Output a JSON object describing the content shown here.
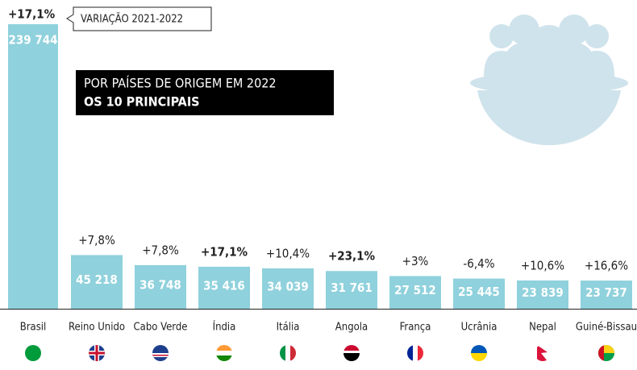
{
  "chart_data": {
    "type": "bar",
    "annotation": "VARIAÇÃO 2021-2022",
    "subtitle": "POR PAÍSES DE ORIGEM EM 2022",
    "title": "OS 10 PRINCIPAIS",
    "categories": [
      "Brasil",
      "Reino Unido",
      "Cabo Verde",
      "Índia",
      "Itália",
      "Angola",
      "França",
      "Ucrânia",
      "Nepal",
      "Guiné-Bissau"
    ],
    "values": [
      239744,
      45218,
      36748,
      35416,
      34039,
      31761,
      27512,
      25445,
      23839,
      23737
    ],
    "value_labels": [
      "239 744",
      "45 218",
      "36 748",
      "35 416",
      "34 039",
      "31 761",
      "27 512",
      "25 445",
      "23 839",
      "23 737"
    ],
    "color": "#8fd1dc",
    "changes": {
      "values": [
        17.1,
        7.8,
        7.8,
        17.1,
        10.4,
        23.1,
        3,
        -6.4,
        10.6,
        16.6
      ],
      "value_labels": [
        "+17,1%",
        "+7,8%",
        "+7,8%",
        "+17,1%",
        "+10,4%",
        "+23,1%",
        "+3%",
        "-6,4%",
        "+10,6%",
        "+16,6%"
      ],
      "bold": [
        true,
        false,
        false,
        true,
        false,
        true,
        false,
        false,
        false,
        false
      ]
    }
  }
}
